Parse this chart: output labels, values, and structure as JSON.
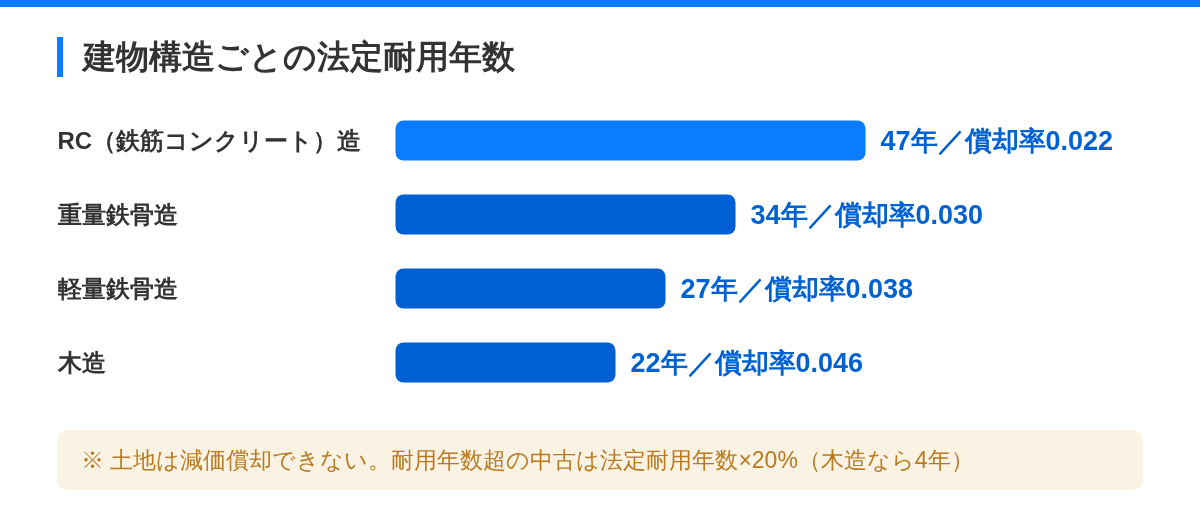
{
  "chart_data": {
    "type": "bar",
    "orientation": "horizontal",
    "title": "建物構造ごとの法定耐用年数",
    "categories": [
      "RC（鉄筋コンクリート）造",
      "重量鉄骨造",
      "軽量鉄骨造",
      "木造"
    ],
    "values": [
      47,
      34,
      27,
      22
    ],
    "colors": [
      "#0a7cff",
      "#005fd2",
      "#005fd2",
      "#005fd2"
    ],
    "value_labels": [
      "47年／償却率0.022",
      "34年／償却率0.030",
      "27年／償却率0.038",
      "22年／償却率0.046"
    ],
    "xlim": [
      0,
      47
    ],
    "tick_labels": "y",
    "annotations": [
      "※ 土地は減価償却できない。耐用年数超の中古は法定耐用年数×20%（木造なら4年）"
    ]
  }
}
